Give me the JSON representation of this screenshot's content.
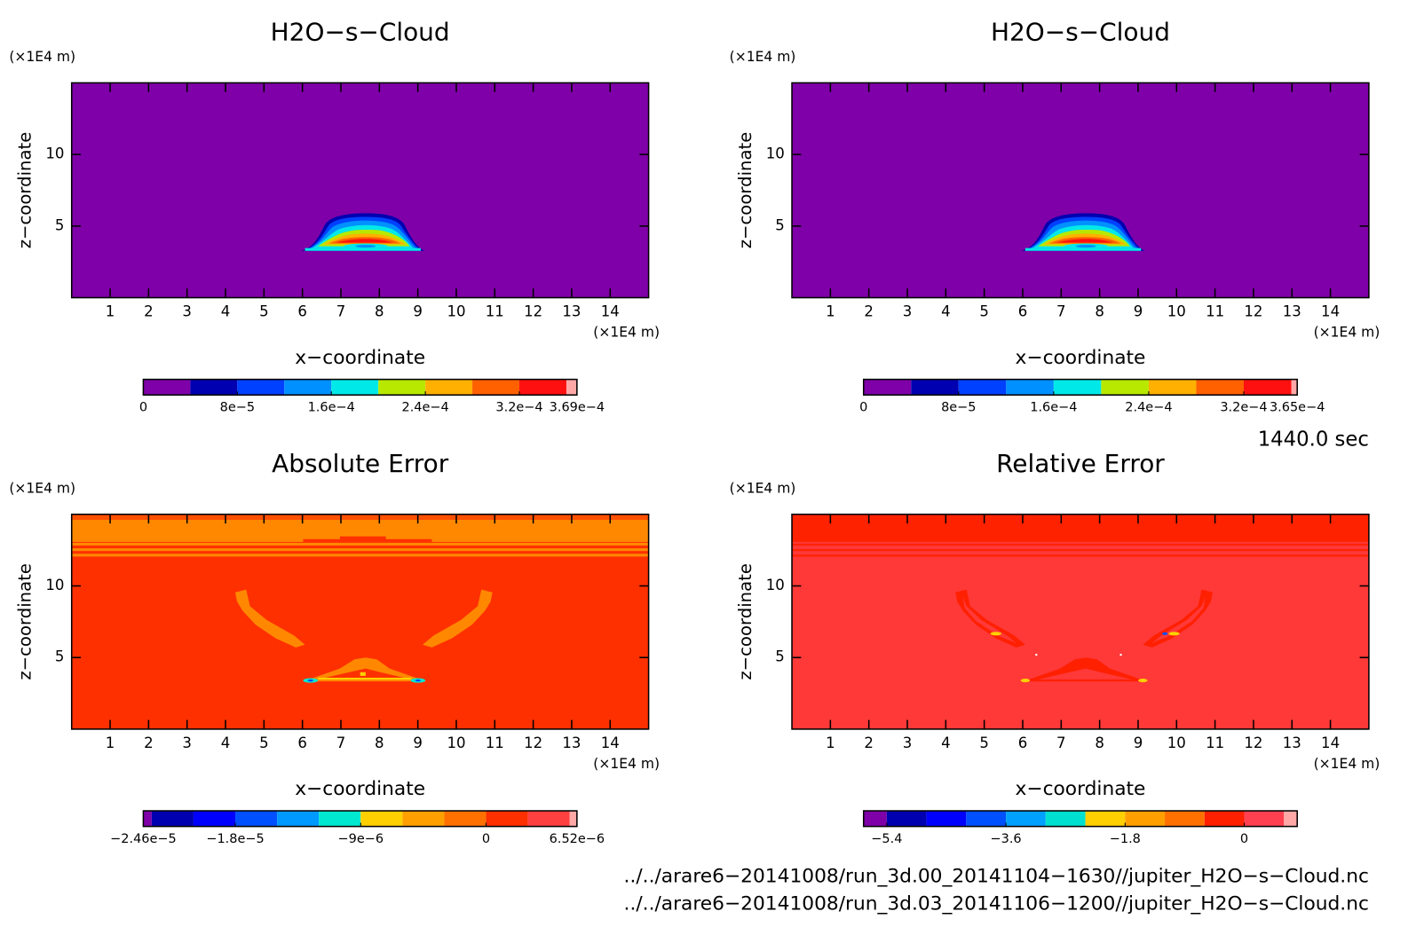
{
  "chart_data": [
    {
      "type": "contour",
      "title": "H2O−s−Cloud",
      "xlabel": "x−coordinate",
      "ylabel": "z−coordinate",
      "xunit": "(×1E4 m)",
      "yunit": "(×1E4 m)",
      "xlim": [
        0,
        15
      ],
      "xticks": [
        1,
        2,
        3,
        4,
        5,
        6,
        7,
        8,
        9,
        10,
        11,
        12,
        13,
        14
      ],
      "ylim": [
        0,
        15
      ],
      "yticks": [
        5,
        10
      ],
      "colorbar": {
        "lim": [
          0,
          0.000369
        ],
        "levels": [
          0,
          4e-05,
          8e-05,
          0.00012,
          0.00016,
          0.0002,
          0.00024,
          0.00028,
          0.00032,
          0.00036,
          0.000369
        ],
        "colors": [
          "#7f00a8",
          "#0000b0",
          "#0040ff",
          "#0090ff",
          "#00e8e8",
          "#b8e800",
          "#ffb000",
          "#ff6000",
          "#ff1010",
          "#ffa8a8"
        ],
        "ticks": [
          0,
          {
            "value": 8e-05,
            "label": "8e−5"
          },
          {
            "value": 0.00016,
            "label": "1.6e−4"
          },
          {
            "value": 0.00024,
            "label": "2.4e−4"
          },
          {
            "value": 0.00032,
            "label": "3.2e−4"
          },
          {
            "value": 0.000369,
            "label": "3.69e−4"
          }
        ]
      }
    },
    {
      "type": "contour",
      "title": "H2O−s−Cloud",
      "xlabel": "x−coordinate",
      "ylabel": "z−coordinate",
      "xunit": "(×1E4 m)",
      "yunit": "(×1E4 m)",
      "xlim": [
        0,
        15
      ],
      "xticks": [
        1,
        2,
        3,
        4,
        5,
        6,
        7,
        8,
        9,
        10,
        11,
        12,
        13,
        14
      ],
      "ylim": [
        0,
        15
      ],
      "yticks": [
        5,
        10
      ],
      "colorbar": {
        "lim": [
          0,
          0.000365
        ],
        "levels": [
          0,
          4e-05,
          8e-05,
          0.00012,
          0.00016,
          0.0002,
          0.00024,
          0.00028,
          0.00032,
          0.00036,
          0.000365
        ],
        "colors": [
          "#7f00a8",
          "#0000b0",
          "#0040ff",
          "#0090ff",
          "#00e8e8",
          "#b8e800",
          "#ffb000",
          "#ff6000",
          "#ff1010",
          "#ffa8a8"
        ],
        "ticks": [
          0,
          {
            "value": 8e-05,
            "label": "8e−5"
          },
          {
            "value": 0.00016,
            "label": "1.6e−4"
          },
          {
            "value": 0.00024,
            "label": "2.4e−4"
          },
          {
            "value": 0.00032,
            "label": "3.2e−4"
          },
          {
            "value": 0.000365,
            "label": "3.65e−4"
          }
        ]
      }
    },
    {
      "type": "contour",
      "title": "Absolute Error",
      "xlabel": "x−coordinate",
      "ylabel": "z−coordinate",
      "xunit": "(×1E4 m)",
      "yunit": "(×1E4 m)",
      "xlim": [
        0,
        15
      ],
      "xticks": [
        1,
        2,
        3,
        4,
        5,
        6,
        7,
        8,
        9,
        10,
        11,
        12,
        13,
        14
      ],
      "ylim": [
        0,
        15
      ],
      "yticks": [
        5,
        10
      ],
      "colorbar": {
        "lim": [
          -2.46e-05,
          6.52e-06
        ],
        "levels": [
          -2.46e-05,
          -2.4e-05,
          -2.1e-05,
          -1.8e-05,
          -1.5e-05,
          -1.2e-05,
          -9e-06,
          -6e-06,
          -3e-06,
          0,
          3e-06,
          6e-06,
          6.52e-06
        ],
        "colors": [
          "#7f00a8",
          "#0000b0",
          "#0000ff",
          "#0050ff",
          "#0099ff",
          "#00e8d0",
          "#ffd000",
          "#ffa000",
          "#ff7000",
          "#ff3000",
          "#ff4040",
          "#ffa8a8"
        ],
        "ticks": [
          {
            "value": -2.46e-05,
            "label": "−2.46e−5"
          },
          {
            "value": -1.8e-05,
            "label": "−1.8e−5"
          },
          {
            "value": -9e-06,
            "label": "−9e−6"
          },
          0,
          {
            "value": 6.52e-06,
            "label": "6.52e−6"
          }
        ]
      }
    },
    {
      "type": "contour",
      "title": "Relative Error",
      "xlabel": "x−coordinate",
      "ylabel": "z−coordinate",
      "xunit": "(×1E4 m)",
      "yunit": "(×1E4 m)",
      "xlim": [
        0,
        15
      ],
      "xticks": [
        1,
        2,
        3,
        4,
        5,
        6,
        7,
        8,
        9,
        10,
        11,
        12,
        13,
        14
      ],
      "ylim": [
        0,
        15
      ],
      "yticks": [
        5,
        10
      ],
      "colorbar": {
        "lim": [
          -5.75,
          0.8
        ],
        "levels": [
          -5.75,
          -5.4,
          -4.8,
          -4.2,
          -3.6,
          -3.0,
          -2.4,
          -1.8,
          -1.2,
          -0.6,
          0,
          0.6,
          0.8
        ],
        "colors": [
          "#7f00a8",
          "#0000b0",
          "#0000ff",
          "#0050ff",
          "#00a0ff",
          "#00e0d0",
          "#ffd000",
          "#ffa000",
          "#ff7000",
          "#ff2000",
          "#ff4050",
          "#ffa8a8"
        ],
        "ticks": [
          {
            "value": -5.4,
            "label": "−5.4"
          },
          {
            "value": -3.6,
            "label": "−3.6"
          },
          {
            "value": -1.8,
            "label": "−1.8"
          },
          0
        ]
      }
    }
  ],
  "time_label": "1440.0 sec",
  "files": [
    "../../arare6−20141008/run_3d.00_20141104−1630//jupiter_H2O−s−Cloud.nc",
    "../../arare6−20141008/run_3d.03_20141106−1200//jupiter_H2O−s−Cloud.nc"
  ]
}
